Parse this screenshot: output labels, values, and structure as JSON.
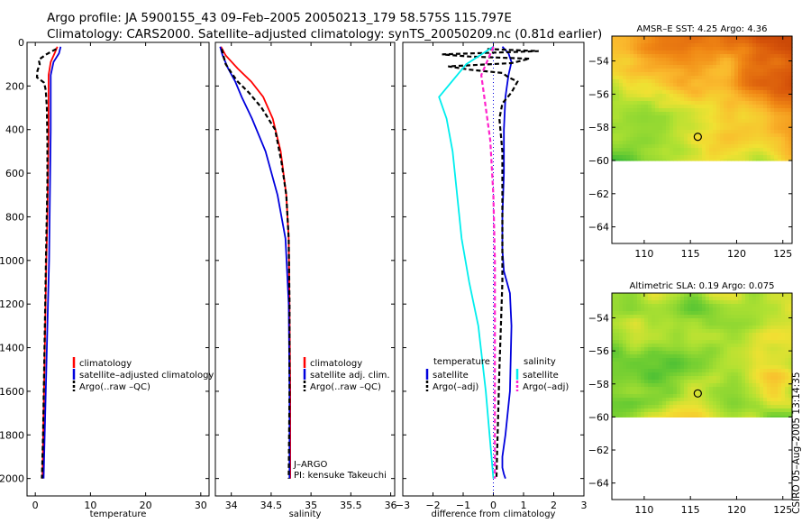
{
  "figure": {
    "title_line1": "Argo profile: JA 5900155_43 09–Feb–2005 20050213_179 58.575S 115.797E",
    "title_line2": "Climatology: CARS2000. Satellite–adjusted climatology: synTS_20050209.nc (0.81d earlier)",
    "side_label": "CSIRO 05–Aug–2005 13:14:35"
  },
  "colors": {
    "climatology": "#ff0000",
    "satellite": "#0000dd",
    "argo": "#000000",
    "cyan": "#00eeee",
    "magenta": "#ff22cc"
  },
  "chart_data": [
    {
      "type": "line",
      "name": "temperature",
      "xlabel": "temperature",
      "ylabel": "",
      "xlim": [
        -1.5,
        31.5
      ],
      "ylim": [
        2080,
        0
      ],
      "xticks": [
        0,
        10,
        20,
        30
      ],
      "yticks": [
        0,
        200,
        400,
        600,
        800,
        1000,
        1200,
        1400,
        1600,
        1800,
        2000
      ],
      "legend": {
        "position": "lower-right",
        "entries": [
          "climatology",
          "satellite–adjusted climatology",
          "Argo(..raw –QC)"
        ]
      },
      "series": [
        {
          "name": "climatology",
          "color": "#ff0000",
          "dash": "",
          "x": [
            4.0,
            3.5,
            2.8,
            2.4,
            2.4,
            2.4,
            2.3,
            2.2,
            2.0,
            1.8,
            1.5,
            1.3
          ],
          "y": [
            20,
            50,
            90,
            150,
            250,
            400,
            600,
            800,
            1000,
            1300,
            1700,
            2000
          ]
        },
        {
          "name": "satellite–adjusted climatology",
          "color": "#0000dd",
          "dash": "",
          "x": [
            4.6,
            4.3,
            3.3,
            2.8,
            2.8,
            2.8,
            2.7,
            2.6,
            2.5,
            2.2,
            1.8,
            1.5
          ],
          "y": [
            20,
            50,
            90,
            150,
            250,
            400,
            600,
            800,
            1000,
            1300,
            1700,
            2000
          ]
        },
        {
          "name": "Argo(..raw –QC)",
          "color": "#000000",
          "dash": "5,3",
          "x": [
            3.8,
            2.0,
            0.6,
            0.8,
            0.4,
            0.3,
            1.6,
            1.9,
            2.1,
            2.2,
            2.2,
            2.0,
            1.8,
            1.6,
            1.4,
            1.2
          ],
          "y": [
            30,
            55,
            80,
            100,
            130,
            160,
            185,
            220,
            300,
            450,
            650,
            900,
            1200,
            1500,
            1800,
            2000
          ]
        }
      ]
    },
    {
      "type": "line",
      "name": "salinity",
      "xlabel": "salinity",
      "ylabel": "",
      "xlim": [
        33.8,
        36.05
      ],
      "ylim": [
        2080,
        0
      ],
      "xticks": [
        34,
        34.5,
        35,
        35.5,
        36
      ],
      "xtick_labels": [
        "34",
        "34.5",
        "35",
        "35.5",
        "36"
      ],
      "legend": {
        "position": "lower-right",
        "entries": [
          "climatology",
          "satellite adj. clim.",
          "Argo(..raw –QC)"
        ]
      },
      "annotation": [
        "J–ARGO",
        "PI: kensuke Takeuchi"
      ],
      "series": [
        {
          "name": "climatology",
          "color": "#ff0000",
          "dash": "",
          "x": [
            33.87,
            33.93,
            34.08,
            34.25,
            34.4,
            34.52,
            34.62,
            34.69,
            34.72,
            34.73,
            34.74,
            34.74
          ],
          "y": [
            20,
            60,
            120,
            180,
            250,
            350,
            500,
            700,
            900,
            1200,
            1600,
            2000
          ]
        },
        {
          "name": "satellite adj. clim.",
          "color": "#0000dd",
          "dash": "",
          "x": [
            33.86,
            33.89,
            33.96,
            34.05,
            34.13,
            34.26,
            34.43,
            34.58,
            34.68,
            34.72,
            34.73,
            34.73
          ],
          "y": [
            20,
            60,
            120,
            180,
            250,
            350,
            500,
            700,
            900,
            1200,
            1600,
            2000
          ]
        },
        {
          "name": "Argo(..raw –QC)",
          "color": "#000000",
          "dash": "5,3",
          "x": [
            33.88,
            33.9,
            33.93,
            34.02,
            34.08,
            34.22,
            34.38,
            34.55,
            34.63,
            34.69,
            34.72,
            34.73,
            34.73,
            34.72
          ],
          "y": [
            30,
            60,
            100,
            150,
            180,
            230,
            300,
            400,
            550,
            700,
            900,
            1200,
            1600,
            2000
          ]
        }
      ]
    },
    {
      "type": "line",
      "name": "difference",
      "xlabel": "difference from climatology",
      "ylabel": "",
      "xlim": [
        -3,
        3
      ],
      "ylim": [
        2080,
        0
      ],
      "xticks": [
        -3,
        -2,
        -1,
        0,
        1,
        2,
        3
      ],
      "xtick_labels": [
        "−3",
        "−2",
        "−1",
        "0",
        "1",
        "2",
        "3"
      ],
      "legend": {
        "position": "lower-right",
        "left_title": "temperature",
        "right_title": "salinity",
        "entries": [
          "satellite",
          "Argo(–adj)",
          "satellite",
          "Argo(–adj)"
        ]
      },
      "series": [
        {
          "name": "temperature satellite",
          "color": "#0000dd",
          "dash": "",
          "x": [
            0.3,
            0.5,
            0.6,
            0.5,
            0.4,
            0.35,
            0.35,
            0.3,
            0.3,
            0.35,
            0.45,
            0.55,
            0.6,
            0.55,
            0.4,
            0.3,
            0.3,
            0.35,
            0.4
          ],
          "y": [
            20,
            50,
            90,
            150,
            250,
            400,
            600,
            800,
            950,
            1050,
            1100,
            1150,
            1300,
            1600,
            1800,
            1900,
            1950,
            1980,
            2000
          ]
        },
        {
          "name": "temperature Argo(–adj)",
          "color": "#000000",
          "dash": "5,3",
          "x": [
            -0.2,
            1.5,
            -1.7,
            -0.8,
            1.2,
            0.6,
            -1.5,
            -0.8,
            0.3,
            0.5,
            0.8,
            0.6,
            0.3,
            0.2,
            0.3,
            0.3,
            0.3,
            0.2,
            0.1
          ],
          "y": [
            30,
            40,
            55,
            65,
            75,
            95,
            110,
            125,
            140,
            160,
            180,
            230,
            280,
            350,
            500,
            800,
            1100,
            1500,
            2000
          ]
        },
        {
          "name": "salinity satellite",
          "color": "#00eeee",
          "dash": "",
          "x": [
            0.0,
            -0.9,
            -1.8,
            -1.55,
            -1.35,
            -1.2,
            -1.05,
            -0.8,
            -0.5,
            -0.25,
            0.0
          ],
          "y": [
            20,
            100,
            250,
            350,
            500,
            700,
            900,
            1100,
            1300,
            1600,
            2000
          ]
        },
        {
          "name": "salinity Argo(–adj)",
          "color": "#ff22cc",
          "dash": "5,3",
          "x": [
            0.0,
            -0.4,
            -0.25,
            -0.1,
            0.0,
            0.05,
            0.05,
            0.05
          ],
          "y": [
            20,
            150,
            300,
            450,
            700,
            1000,
            1500,
            2000
          ]
        }
      ]
    },
    {
      "type": "heatmap",
      "name": "sst-map",
      "title": "AMSR–E SST: 4.25 Argo: 4.36",
      "xlim": [
        106.5,
        126
      ],
      "ylim": [
        -65,
        -52.5
      ],
      "xticks": [
        110,
        115,
        120,
        125
      ],
      "yticks": [
        -54,
        -56,
        -58,
        -60,
        -62,
        -64
      ],
      "ytick_labels": [
        "−54",
        "−56",
        "−58",
        "−60",
        "−62",
        "−64"
      ],
      "data_lat_range": [
        -60,
        -52.5
      ],
      "marker": {
        "lon": 115.797,
        "lat": -58.575
      }
    },
    {
      "type": "heatmap",
      "name": "sla-map",
      "title": "Altimetric SLA: 0.19 Argo: 0.075",
      "xlim": [
        106.5,
        126
      ],
      "ylim": [
        -65,
        -52.5
      ],
      "xticks": [
        110,
        115,
        120,
        125
      ],
      "yticks": [
        -54,
        -56,
        -58,
        -60,
        -62,
        -64
      ],
      "ytick_labels": [
        "−54",
        "−56",
        "−58",
        "−60",
        "−62",
        "−64"
      ],
      "data_lat_range": [
        -60,
        -52.5
      ],
      "marker": {
        "lon": 115.797,
        "lat": -58.575
      }
    }
  ]
}
